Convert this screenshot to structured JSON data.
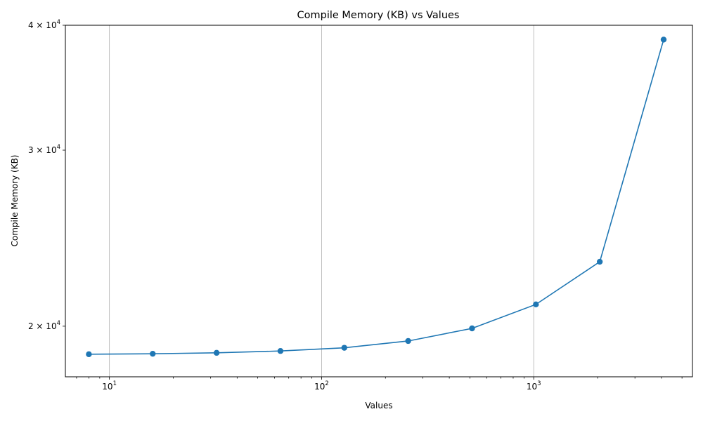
{
  "chart_data": {
    "type": "line",
    "title": "Compile Memory (KB) vs Values",
    "xlabel": "Values",
    "ylabel": "Compile Memory (KB)",
    "xscale": "log",
    "yscale": "log",
    "xlim": [
      6.2,
      5600
    ],
    "ylim": [
      17800,
      40000
    ],
    "grid": "x-major",
    "x_ticks": [
      {
        "value": 10,
        "base": "10",
        "exp": "1"
      },
      {
        "value": 100,
        "base": "10",
        "exp": "2"
      },
      {
        "value": 1000,
        "base": "10",
        "exp": "3"
      }
    ],
    "y_ticks": [
      {
        "value": 20000,
        "base": "2 × 10",
        "exp": "4"
      },
      {
        "value": 30000,
        "base": "3 × 10",
        "exp": "4"
      },
      {
        "value": 40000,
        "base": "4 × 10",
        "exp": "4"
      }
    ],
    "color": "#1f77b4",
    "x": [
      8,
      16,
      32,
      64,
      128,
      256,
      512,
      1024,
      2048,
      4096
    ],
    "y": [
      18750,
      18770,
      18810,
      18890,
      19030,
      19330,
      19900,
      21030,
      23200,
      38700
    ]
  }
}
